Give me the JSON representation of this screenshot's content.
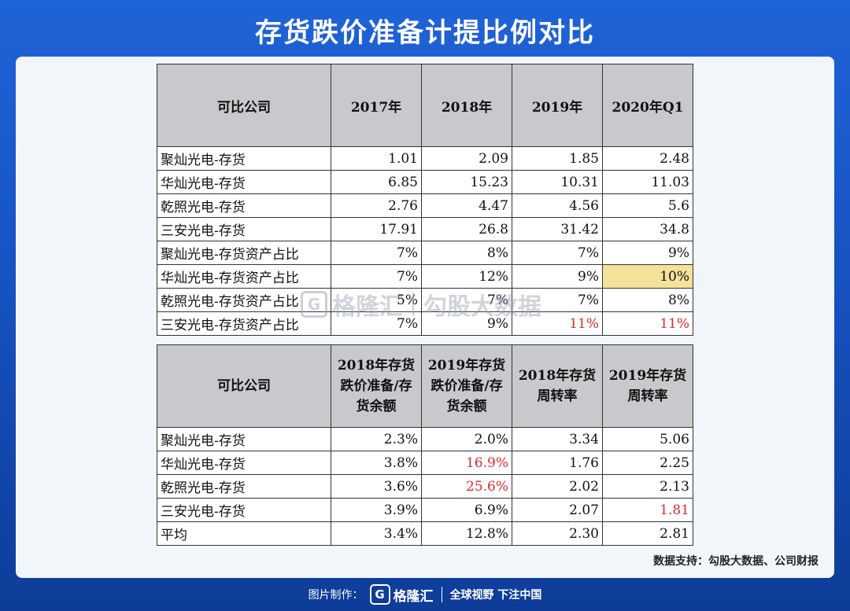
{
  "title": "存货跌价准备计提比例对比",
  "table1": {
    "headers": [
      "可比公司",
      "2017年",
      "2018年",
      "2019年",
      "2020年Q1"
    ],
    "rows": [
      {
        "name": "聚灿光电-存货",
        "values": [
          "1.01",
          "2.09",
          "1.85",
          "2.48"
        ]
      },
      {
        "name": "华灿光电-存货",
        "values": [
          "6.85",
          "15.23",
          "10.31",
          "11.03"
        ]
      },
      {
        "name": "乾照光电-存货",
        "values": [
          "2.76",
          "4.47",
          "4.56",
          "5.6"
        ]
      },
      {
        "name": "三安光电-存货",
        "values": [
          "17.91",
          "26.8",
          "31.42",
          "34.8"
        ]
      },
      {
        "name": "聚灿光电-存货资产占比",
        "values": [
          "7%",
          "8%",
          "7%",
          "9%"
        ]
      },
      {
        "name": "华灿光电-存货资产占比",
        "values": [
          "7%",
          "12%",
          "9%",
          "10%"
        ]
      },
      {
        "name": "乾照光电-存货资产占比",
        "values": [
          "5%",
          "7%",
          "7%",
          "8%"
        ]
      },
      {
        "name": "三安光电-存货资产占比",
        "values": [
          "7%",
          "9%",
          "11%",
          "11%"
        ]
      }
    ]
  },
  "table2": {
    "headers": [
      "可比公司",
      "2018年存货跌价准备/存货余额",
      "2019年存货跌价准备/存货余额",
      "2018年存货周转率",
      "2019年存货周转率"
    ],
    "rows": [
      {
        "name": "聚灿光电-存货",
        "values": [
          "2.3%",
          "2.0%",
          "3.34",
          "5.06"
        ]
      },
      {
        "name": "华灿光电-存货",
        "values": [
          "3.8%",
          "16.9%",
          "1.76",
          "2.25"
        ]
      },
      {
        "name": "乾照光电-存货",
        "values": [
          "3.6%",
          "25.6%",
          "2.02",
          "2.13"
        ]
      },
      {
        "name": "三安光电-存货",
        "values": [
          "3.9%",
          "6.9%",
          "2.07",
          "1.81"
        ]
      },
      {
        "name": "平均",
        "values": [
          "3.4%",
          "12.8%",
          "2.30",
          "2.81"
        ]
      }
    ]
  },
  "colors": {
    "highlight_red": "#e22a2a",
    "highlight_yellow": "#f4e19a",
    "header_gray": "#c7c9cc"
  },
  "watermark": {
    "logo": "G",
    "brand": "格隆汇",
    "text": "勾股大数据"
  },
  "source": "数据支持：勾股大数据、公司财报",
  "footer": {
    "prefix": "图片制作：",
    "logo": "G",
    "brand": "格隆汇",
    "slogan": "全球视野 下注中国"
  }
}
